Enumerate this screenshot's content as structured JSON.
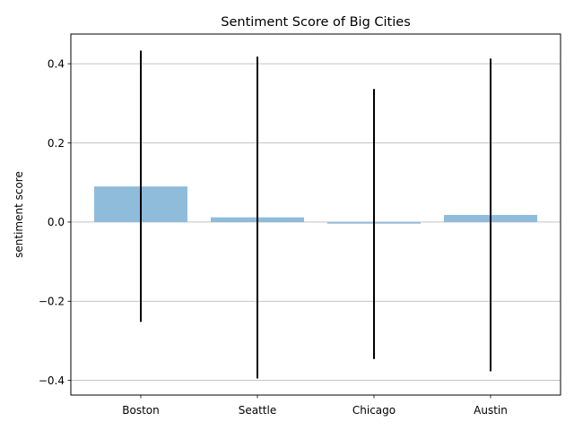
{
  "chart_data": {
    "type": "bar",
    "title": "Sentiment Score of Big Cities",
    "xlabel": "",
    "ylabel": "sentiment score",
    "categories": [
      "Boston",
      "Seattle",
      "Chicago",
      "Austin"
    ],
    "values": [
      0.09,
      0.012,
      -0.004,
      0.018
    ],
    "error_low": [
      -0.252,
      -0.395,
      -0.346,
      -0.377
    ],
    "error_high": [
      0.433,
      0.418,
      0.336,
      0.413
    ],
    "ylim": [
      -0.437,
      0.475
    ],
    "yticks": [
      -0.4,
      -0.2,
      0.0,
      0.2,
      0.4
    ],
    "ytick_labels": [
      "−0.4",
      "−0.2",
      "0.0",
      "0.2",
      "0.4"
    ],
    "grid": "y",
    "bar_color": "#8fbcdb",
    "error_color": "#000000"
  }
}
